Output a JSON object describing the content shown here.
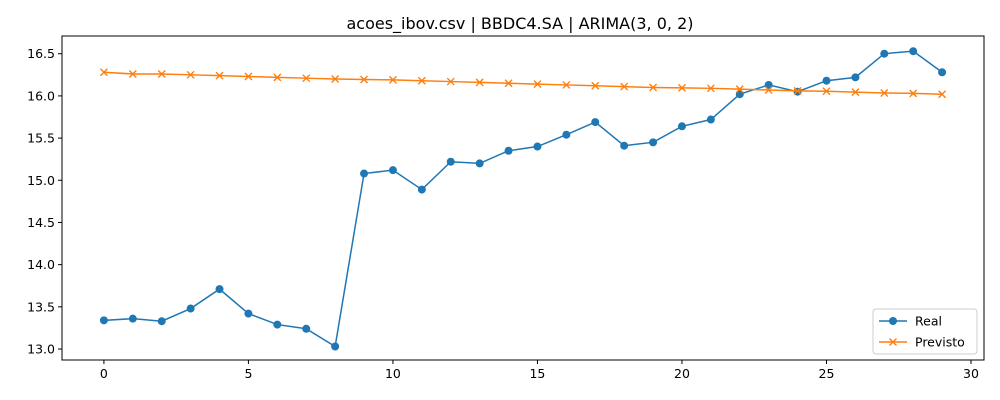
{
  "chart_data": {
    "type": "line",
    "title": "acoes_ibov.csv | BBDC4.SA | ARIMA(3, 0, 2)",
    "xlabel": "",
    "ylabel": "",
    "xlim": [
      -1.45,
      30.45
    ],
    "ylim": [
      12.87,
      16.71
    ],
    "xticks": [
      0,
      5,
      10,
      15,
      20,
      25,
      30
    ],
    "xtick_labels": [
      "0",
      "5",
      "10",
      "15",
      "20",
      "25",
      "30"
    ],
    "yticks": [
      13.0,
      13.5,
      14.0,
      14.5,
      15.0,
      15.5,
      16.0,
      16.5
    ],
    "ytick_labels": [
      "13.0",
      "13.5",
      "14.0",
      "14.5",
      "15.0",
      "15.5",
      "16.0",
      "16.5"
    ],
    "grid": false,
    "legend_position": "lower-right",
    "x": [
      0,
      1,
      2,
      3,
      4,
      5,
      6,
      7,
      8,
      9,
      10,
      11,
      12,
      13,
      14,
      15,
      16,
      17,
      18,
      19,
      20,
      21,
      22,
      23,
      24,
      25,
      26,
      27,
      28,
      29
    ],
    "series": [
      {
        "name": "Real",
        "color": "#1f77b4",
        "marker": "circle",
        "values": [
          13.34,
          13.36,
          13.33,
          13.48,
          13.71,
          13.42,
          13.29,
          13.24,
          13.03,
          15.08,
          15.12,
          14.89,
          15.22,
          15.2,
          15.35,
          15.4,
          15.54,
          15.69,
          15.41,
          15.45,
          15.64,
          15.72,
          16.02,
          16.13,
          16.05,
          16.18,
          16.22,
          16.5,
          16.53,
          16.28
        ]
      },
      {
        "name": "Previsto",
        "color": "#ff7f0e",
        "marker": "x",
        "values": [
          16.28,
          16.26,
          16.26,
          16.25,
          16.24,
          16.23,
          16.22,
          16.21,
          16.2,
          16.195,
          16.19,
          16.18,
          16.17,
          16.16,
          16.15,
          16.14,
          16.13,
          16.12,
          16.11,
          16.1,
          16.095,
          16.09,
          16.08,
          16.07,
          16.06,
          16.055,
          16.045,
          16.035,
          16.03,
          16.02
        ]
      }
    ]
  }
}
